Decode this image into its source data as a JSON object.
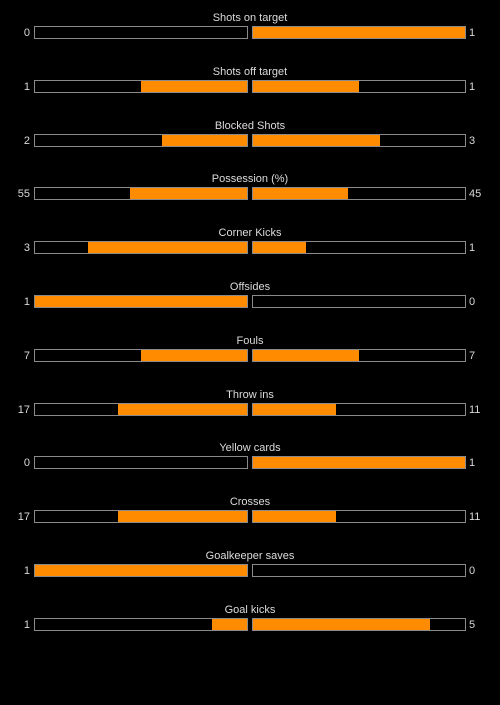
{
  "colors": {
    "background": "#000000",
    "bar_fill": "#ff8c00",
    "bar_border": "#8a8a8a",
    "text": "#d9d9d9"
  },
  "stats": [
    {
      "label": "Shots on target",
      "home": "0",
      "away": "1",
      "home_fill": 0.0,
      "away_fill": 1.0
    },
    {
      "label": "Shots off target",
      "home": "1",
      "away": "1",
      "home_fill": 0.5,
      "away_fill": 0.5
    },
    {
      "label": "Blocked Shots",
      "home": "2",
      "away": "3",
      "home_fill": 0.4,
      "away_fill": 0.6
    },
    {
      "label": "Possession (%)",
      "home": "55",
      "away": "45",
      "home_fill": 0.55,
      "away_fill": 0.45
    },
    {
      "label": "Corner Kicks",
      "home": "3",
      "away": "1",
      "home_fill": 0.75,
      "away_fill": 0.25
    },
    {
      "label": "Offsides",
      "home": "1",
      "away": "0",
      "home_fill": 1.0,
      "away_fill": 0.0
    },
    {
      "label": "Fouls",
      "home": "7",
      "away": "7",
      "home_fill": 0.5,
      "away_fill": 0.5
    },
    {
      "label": "Throw ins",
      "home": "17",
      "away": "11",
      "home_fill": 0.607,
      "away_fill": 0.393
    },
    {
      "label": "Yellow cards",
      "home": "0",
      "away": "1",
      "home_fill": 0.0,
      "away_fill": 1.0
    },
    {
      "label": "Crosses",
      "home": "17",
      "away": "11",
      "home_fill": 0.607,
      "away_fill": 0.393
    },
    {
      "label": "Goalkeeper saves",
      "home": "1",
      "away": "0",
      "home_fill": 1.0,
      "away_fill": 0.0
    },
    {
      "label": "Goal kicks",
      "home": "1",
      "away": "5",
      "home_fill": 0.167,
      "away_fill": 0.833
    }
  ]
}
